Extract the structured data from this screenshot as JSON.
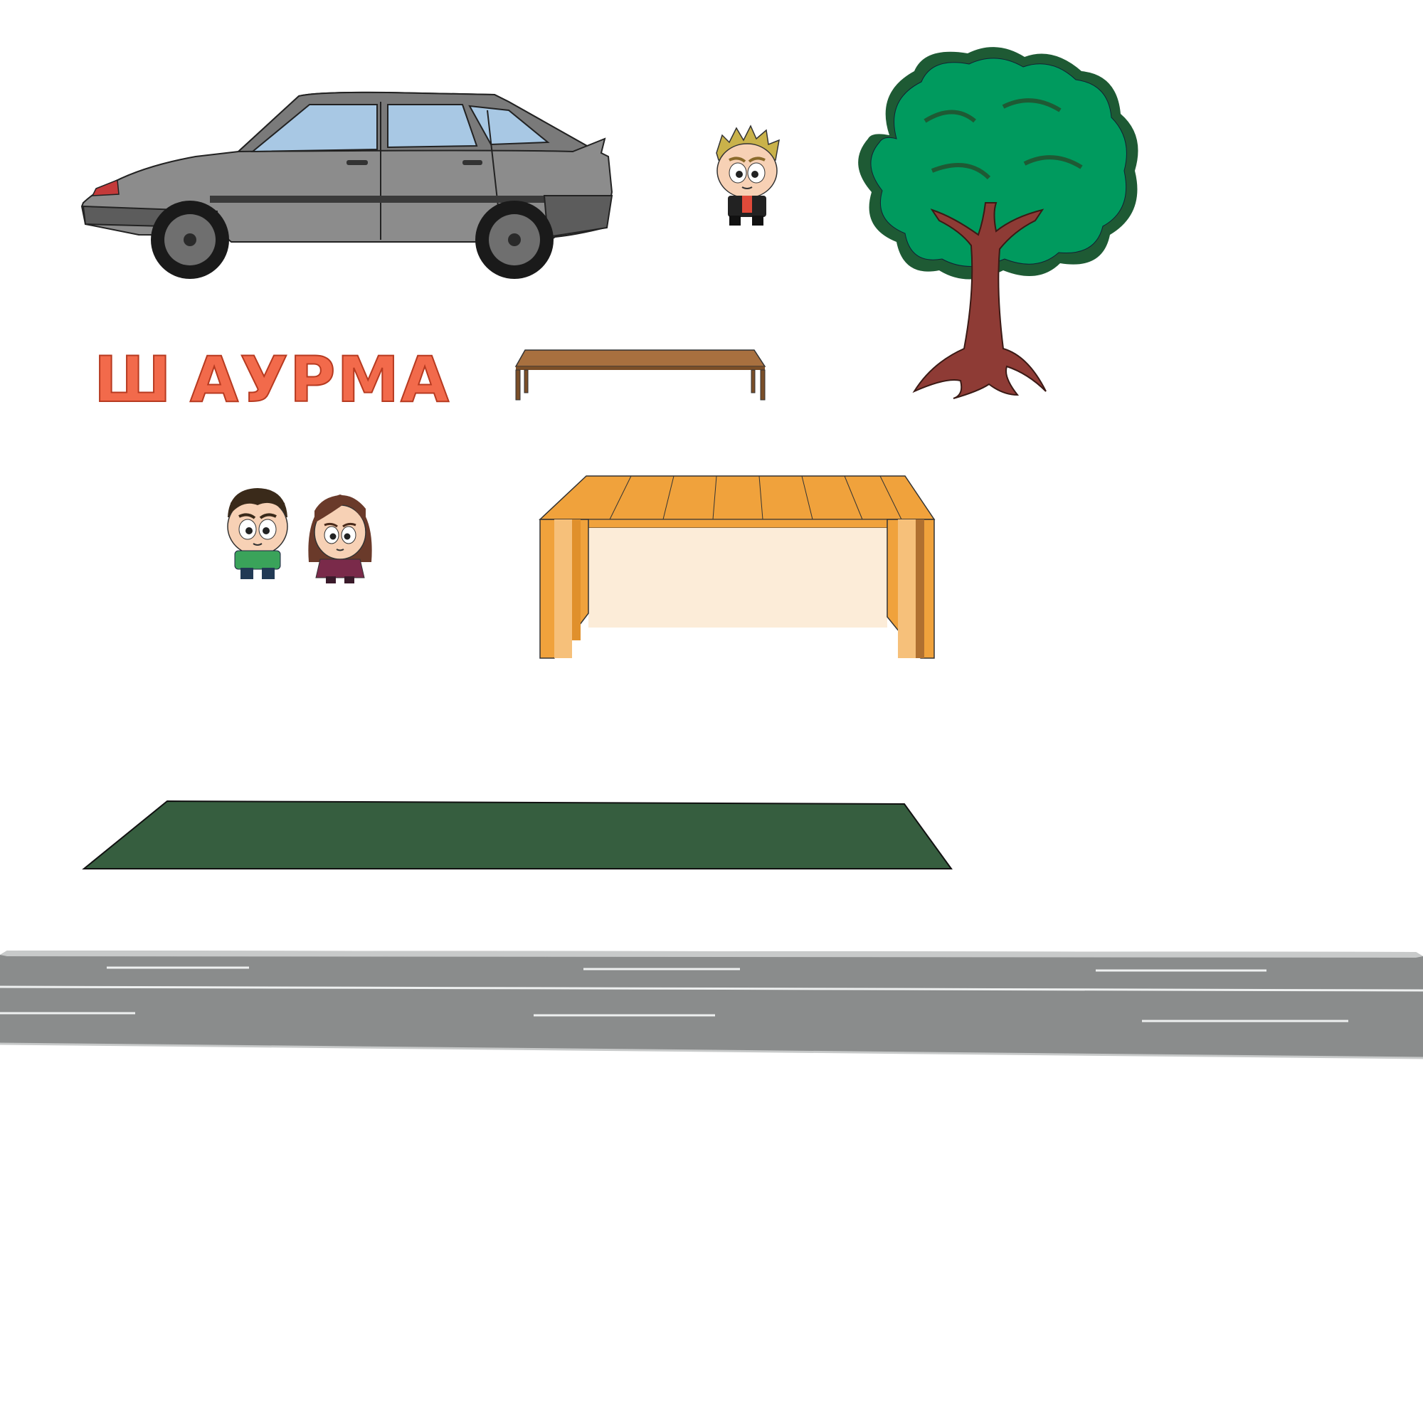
{
  "sign": {
    "letter_1": "Ш",
    "letter_2": "АУРМА"
  },
  "colors": {
    "background": "#ffffff",
    "sign_text": "#f26a4b",
    "car_body": "#8c8c8c",
    "car_window": "#a8c8e4",
    "tree_foliage": "#009a5e",
    "tree_foliage_dark": "#1e5a34",
    "tree_trunk": "#8e3b35",
    "bench_top": "#a8703f",
    "shelter_roof": "#f0a23c",
    "shelter_panel": "#fcecd8",
    "grass_patch": "#365e3f",
    "road": "#8a8c8c",
    "road_marking": "#eef0f0"
  },
  "sprites": {
    "car": "hatchback-car",
    "boy_blond": "character-blond-boy",
    "tree": "oak-tree",
    "bench": "wooden-bench",
    "boy_green": "character-green-shirt-boy",
    "girl": "character-brown-hair-girl",
    "shelter": "bus-stop-shelter",
    "grass": "grass-patch",
    "road": "two-lane-road"
  }
}
